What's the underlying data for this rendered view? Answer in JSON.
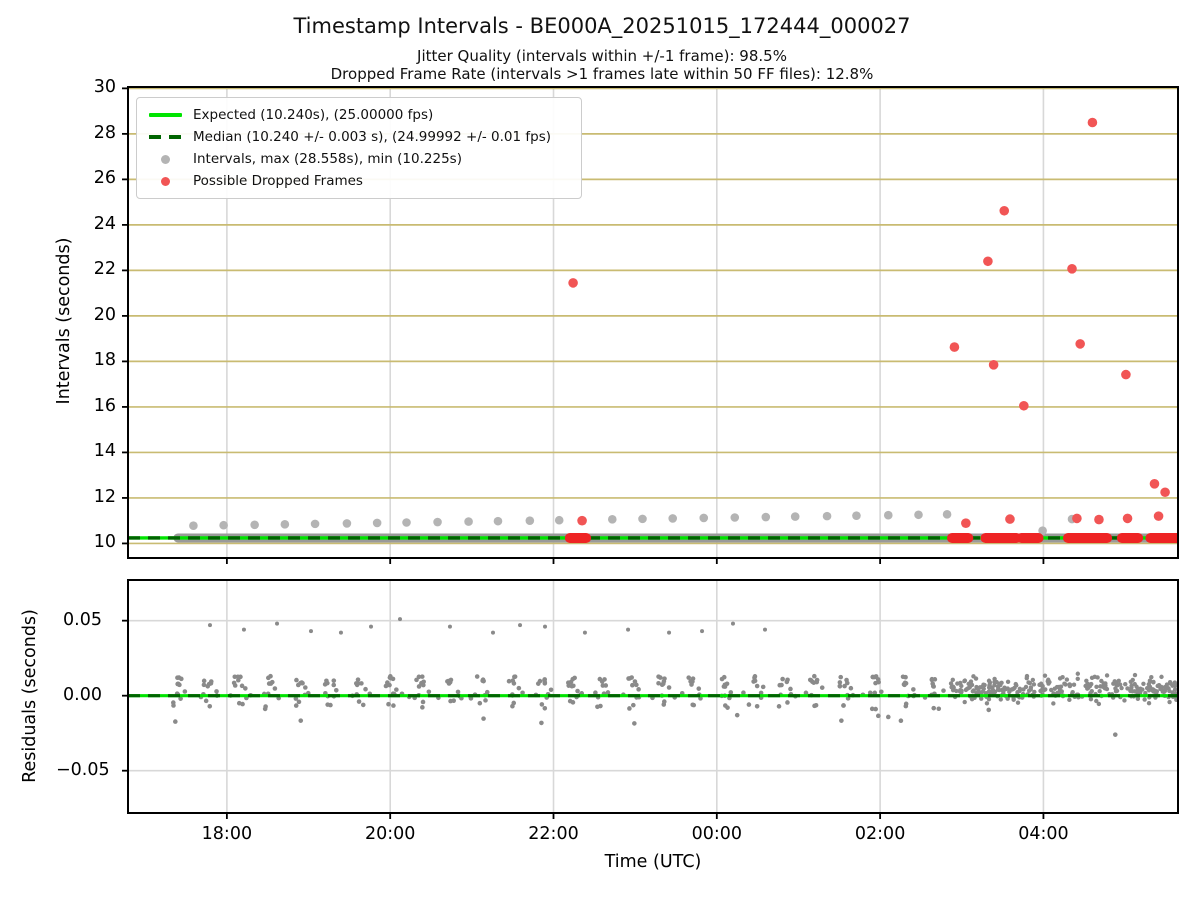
{
  "header": {
    "title": "Timestamp Intervals - BE000A_20251015_172444_000027",
    "subtitle1": "Jitter Quality (intervals within +/-1 frame): 98.5%",
    "subtitle2": "Dropped Frame Rate (intervals >1 frames late within 50 FF files): 12.8%"
  },
  "colors": {
    "expected": "#00e400",
    "median": "#006400",
    "gray_dot": "#b4b4b4",
    "band_gray": "#9a9a9a",
    "red_dot": "#f15555",
    "band_red": "#ee2424",
    "grid_khaki": "#c9bb72",
    "grid_gray": "#d8d8d8",
    "residual_dot": "#8a8a8a",
    "frame": "#000000"
  },
  "legend": {
    "entries": [
      {
        "type": "line-solid",
        "color": "#00e400",
        "label": "Expected (10.240s), (25.00000 fps)"
      },
      {
        "type": "line-dashed",
        "color": "#006400",
        "label": "Median (10.240 +/- 0.003 s), (24.99992 +/- 0.01 fps)"
      },
      {
        "type": "dot",
        "color": "#b4b4b4",
        "label": "Intervals, max (28.558s), min (10.225s)"
      },
      {
        "type": "dot",
        "color": "#f15555",
        "label": "Possible Dropped Frames"
      }
    ]
  },
  "x_axis": {
    "label": "Time (UTC)",
    "xlim": [
      -1.211,
      11.648
    ],
    "ticks": [
      {
        "t": 0,
        "label": "18:00"
      },
      {
        "t": 2,
        "label": "20:00"
      },
      {
        "t": 4,
        "label": "22:00"
      },
      {
        "t": 6,
        "label": "00:00"
      },
      {
        "t": 8,
        "label": "02:00"
      },
      {
        "t": 10,
        "label": "04:00"
      }
    ]
  },
  "chart_data": [
    {
      "id": "intervals",
      "type": "scatter",
      "ylabel": "Intervals (seconds)",
      "ylim": [
        9.36,
        30.06
      ],
      "yticks": [
        10,
        12,
        14,
        16,
        18,
        20,
        22,
        24,
        26,
        28,
        30
      ],
      "expected_value": 10.24,
      "median_value": 10.24,
      "max_interval": 28.558,
      "min_interval": 10.225,
      "band": {
        "t0": -0.6,
        "t1": 11.645,
        "value": 10.24
      },
      "red_segments": [
        [
          4.2,
          4.4
        ],
        [
          8.88,
          9.08
        ],
        [
          9.29,
          9.67
        ],
        [
          9.73,
          9.94
        ],
        [
          10.3,
          10.78
        ],
        [
          10.96,
          11.16
        ],
        [
          11.31,
          11.645
        ]
      ],
      "gray_envelope": [
        [
          -0.41,
          10.78
        ],
        [
          -0.04,
          10.8
        ],
        [
          0.34,
          10.82
        ],
        [
          0.71,
          10.84
        ],
        [
          1.08,
          10.86
        ],
        [
          1.47,
          10.88
        ],
        [
          1.84,
          10.9
        ],
        [
          2.2,
          10.92
        ],
        [
          2.58,
          10.94
        ],
        [
          2.96,
          10.96
        ],
        [
          3.32,
          10.98
        ],
        [
          3.71,
          11.0
        ],
        [
          4.07,
          11.02
        ],
        [
          4.72,
          11.06
        ],
        [
          5.09,
          11.08
        ],
        [
          5.46,
          11.1
        ],
        [
          5.84,
          11.12
        ],
        [
          6.22,
          11.14
        ],
        [
          6.6,
          11.16
        ],
        [
          6.96,
          11.18
        ],
        [
          7.35,
          11.2
        ],
        [
          7.71,
          11.22
        ],
        [
          8.1,
          11.24
        ],
        [
          8.47,
          11.26
        ],
        [
          8.82,
          11.28
        ],
        [
          9.99,
          10.56
        ],
        [
          10.35,
          11.07
        ]
      ],
      "red_outliers": [
        [
          4.24,
          21.45
        ],
        [
          8.91,
          18.63
        ],
        [
          9.32,
          22.4
        ],
        [
          9.39,
          17.85
        ],
        [
          9.52,
          24.62
        ],
        [
          9.76,
          16.05
        ],
        [
          10.35,
          22.07
        ],
        [
          10.45,
          18.77
        ],
        [
          10.6,
          28.5
        ],
        [
          11.01,
          17.42
        ],
        [
          11.36,
          12.62
        ],
        [
          11.49,
          12.25
        ]
      ],
      "red_near_band": [
        [
          4.35,
          11.0
        ],
        [
          9.05,
          10.89
        ],
        [
          9.59,
          11.07
        ],
        [
          10.41,
          11.1
        ],
        [
          10.68,
          11.05
        ],
        [
          11.03,
          11.1
        ],
        [
          11.41,
          11.2
        ]
      ]
    },
    {
      "id": "residuals",
      "type": "scatter",
      "ylabel": "Residuals (seconds)",
      "ylim": [
        -0.0782,
        0.0771
      ],
      "yticks": [
        {
          "v": 0.05,
          "label": "0.05"
        },
        {
          "v": 0.0,
          "label": "0.00"
        },
        {
          "v": -0.05,
          "label": "−0.05"
        }
      ],
      "zero_line_value": 0.0,
      "high_row": [
        [
          -0.207,
          0.047
        ],
        [
          0.209,
          0.044
        ],
        [
          0.614,
          0.048
        ],
        [
          1.03,
          0.043
        ],
        [
          1.397,
          0.042
        ],
        [
          1.765,
          0.046
        ],
        [
          2.12,
          0.051
        ],
        [
          2.732,
          0.046
        ],
        [
          3.259,
          0.042
        ],
        [
          3.59,
          0.047
        ],
        [
          3.896,
          0.046
        ],
        [
          4.385,
          0.042
        ],
        [
          4.913,
          0.044
        ],
        [
          5.415,
          0.042
        ],
        [
          5.819,
          0.043
        ],
        [
          6.198,
          0.048
        ],
        [
          6.59,
          0.044
        ]
      ],
      "cluster_centers": [
        -0.6,
        -0.229,
        0.142,
        0.513,
        0.884,
        1.255,
        1.626,
        1.997,
        2.368,
        2.739,
        3.11,
        3.481,
        3.852,
        4.223,
        4.594,
        4.965,
        5.336,
        5.707,
        6.078,
        6.449,
        6.82,
        7.191,
        7.562,
        7.933,
        8.304,
        8.675
      ],
      "dense_region": {
        "t0": 8.86,
        "t1": 11.645,
        "n": 300,
        "mean": 0.0045,
        "spread": 0.012
      },
      "outliers": [
        [
          8.1,
          -0.0142
        ],
        [
          9.33,
          -0.0095
        ],
        [
          10.88,
          -0.026
        ],
        [
          4.99,
          -0.0185
        ],
        [
          6.25,
          -0.013
        ]
      ]
    }
  ]
}
